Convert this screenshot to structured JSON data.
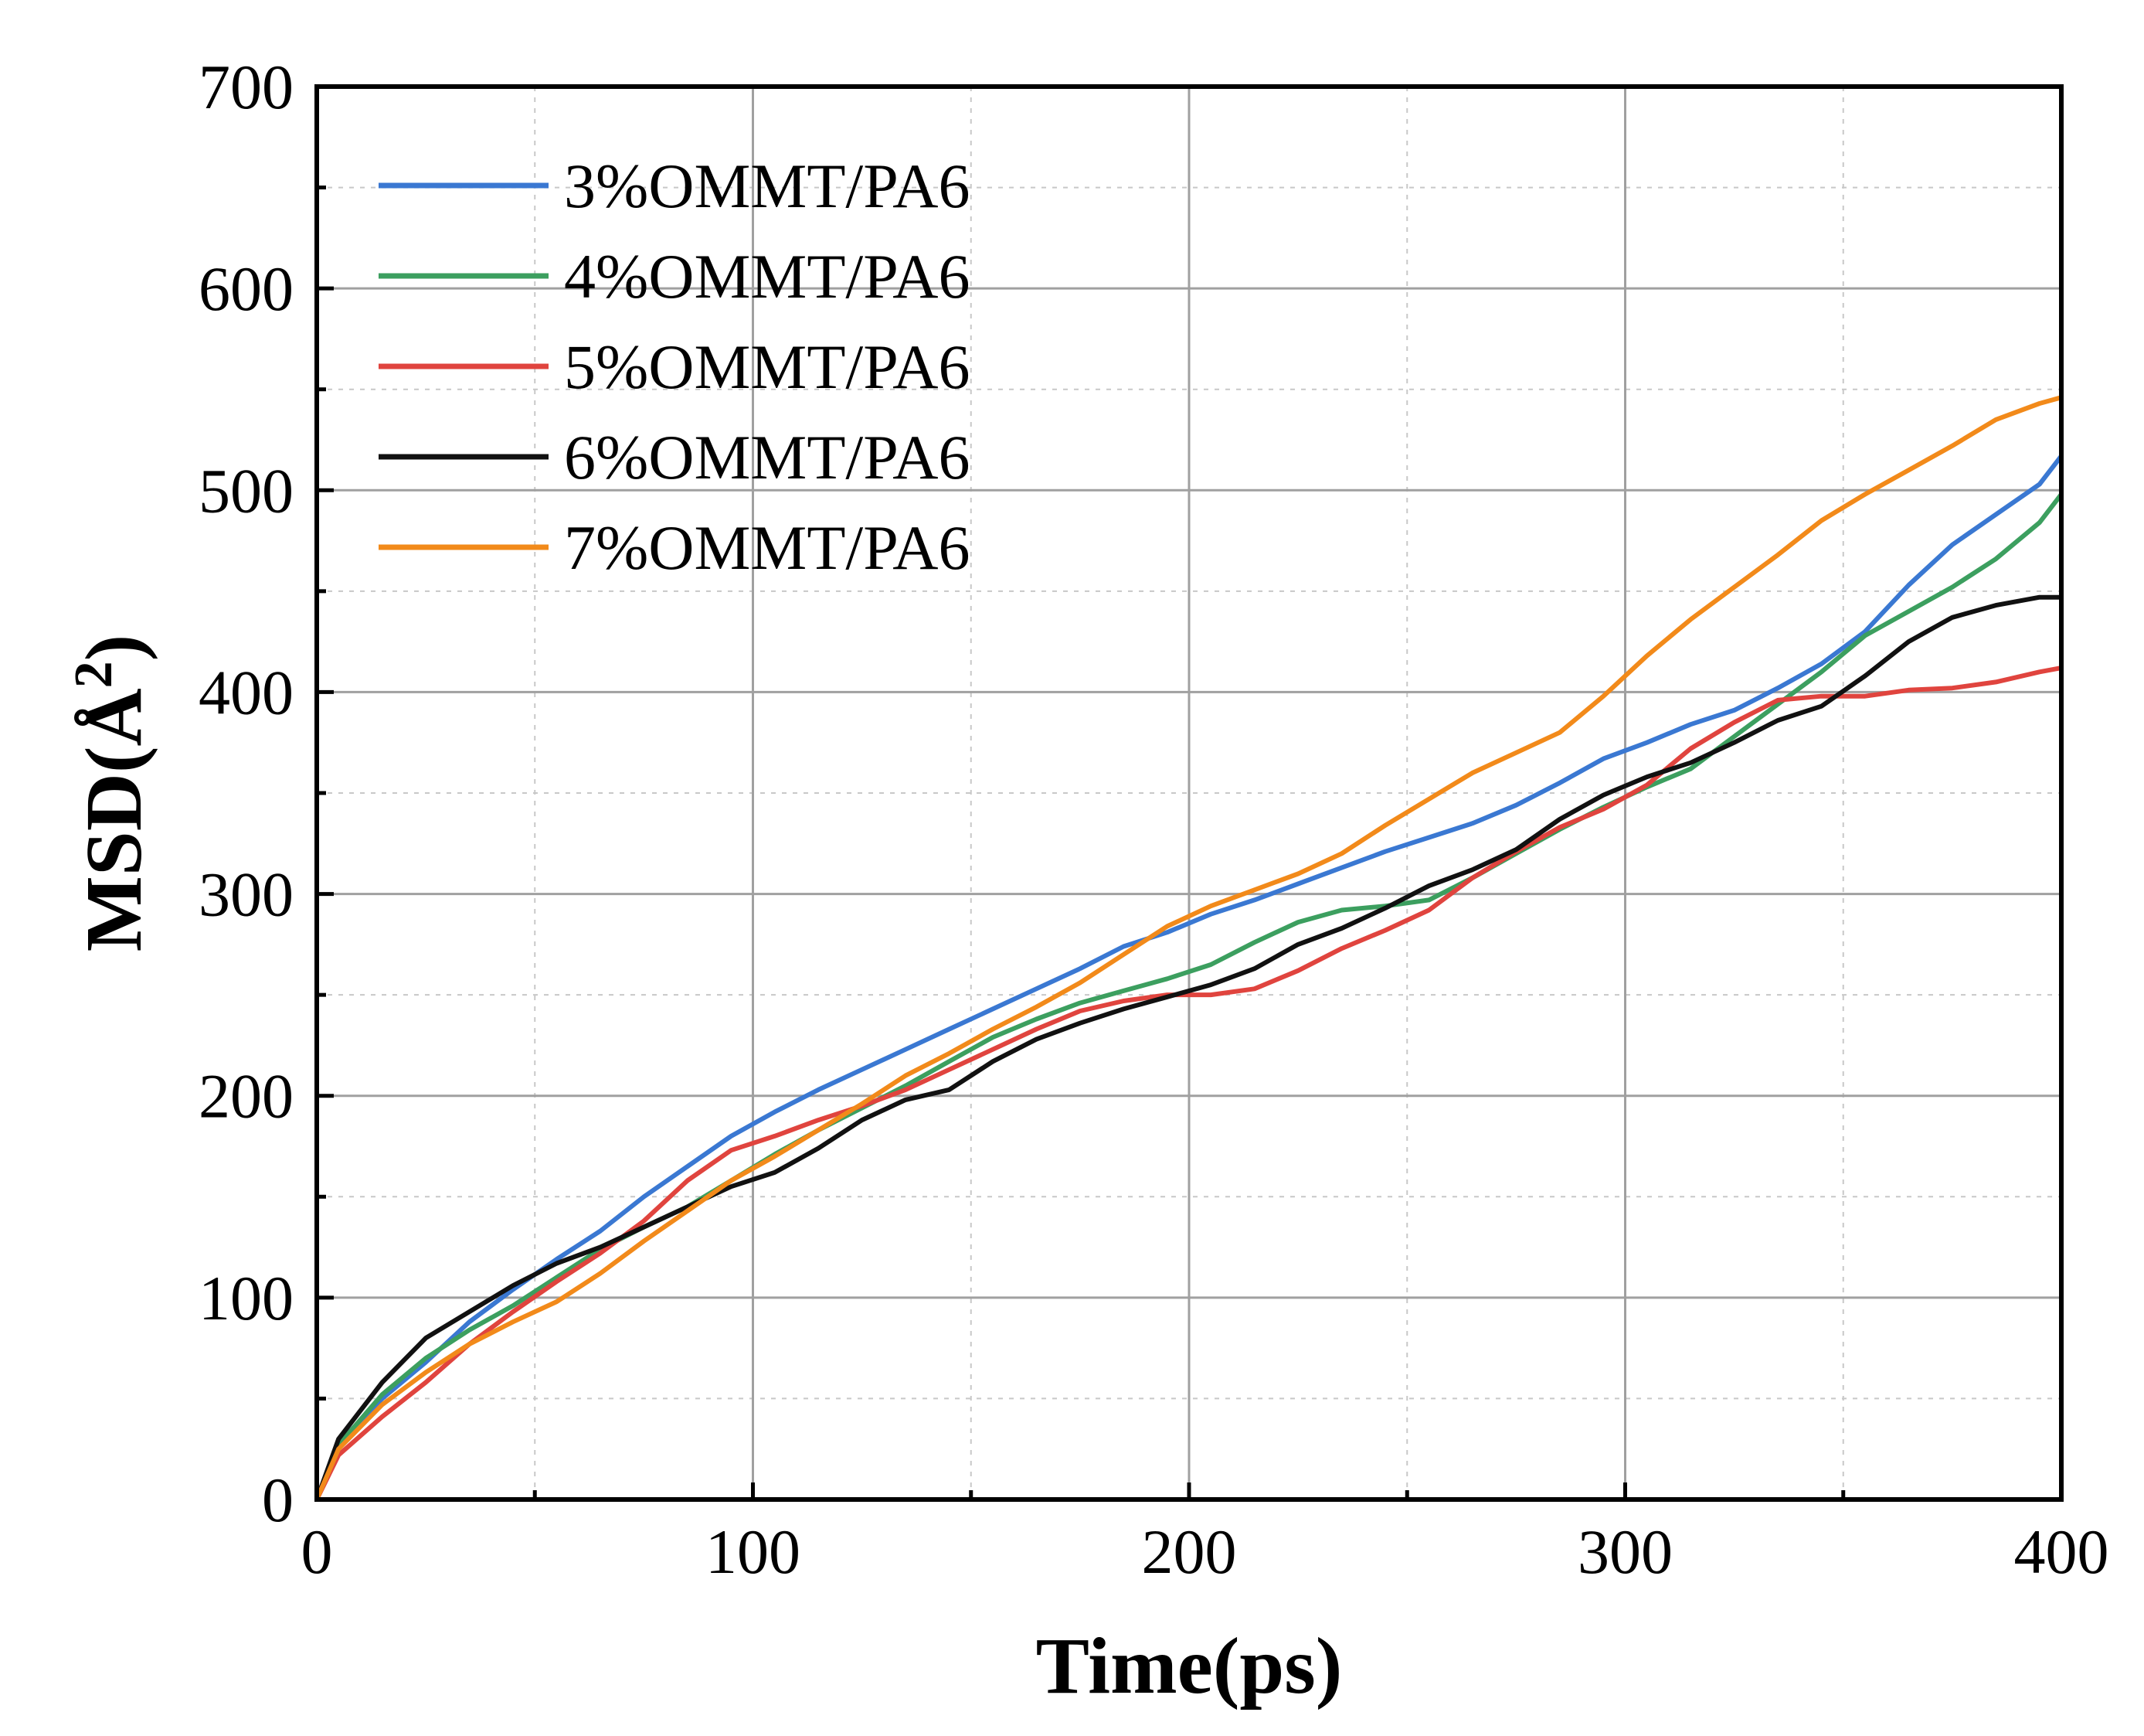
{
  "chart_data": {
    "type": "line",
    "xlabel": "Time(ps)",
    "ylabel_main": "MSD(Å",
    "ylabel_sup": "2",
    "ylabel_close": ")",
    "xlim": [
      0,
      400
    ],
    "ylim": [
      0,
      700
    ],
    "x_ticks": [
      0,
      100,
      200,
      300,
      400
    ],
    "y_ticks": [
      0,
      100,
      200,
      300,
      400,
      500,
      600,
      700
    ],
    "x_minor_step": 50,
    "y_minor_step": 50,
    "grid": true,
    "legend_position": "top-left",
    "series": [
      {
        "name": "3%OMMT/PA6",
        "color": "#3A78D2",
        "points": [
          [
            0,
            0
          ],
          [
            5,
            28
          ],
          [
            15,
            50
          ],
          [
            25,
            68
          ],
          [
            35,
            88
          ],
          [
            45,
            104
          ],
          [
            55,
            119
          ],
          [
            65,
            133
          ],
          [
            75,
            150
          ],
          [
            85,
            165
          ],
          [
            95,
            180
          ],
          [
            105,
            192
          ],
          [
            115,
            203
          ],
          [
            125,
            213
          ],
          [
            135,
            223
          ],
          [
            145,
            233
          ],
          [
            155,
            243
          ],
          [
            165,
            253
          ],
          [
            175,
            263
          ],
          [
            185,
            274
          ],
          [
            195,
            281
          ],
          [
            205,
            290
          ],
          [
            215,
            297
          ],
          [
            225,
            305
          ],
          [
            235,
            313
          ],
          [
            245,
            321
          ],
          [
            255,
            328
          ],
          [
            265,
            335
          ],
          [
            275,
            344
          ],
          [
            285,
            355
          ],
          [
            295,
            367
          ],
          [
            305,
            375
          ],
          [
            315,
            384
          ],
          [
            325,
            391
          ],
          [
            335,
            402
          ],
          [
            345,
            414
          ],
          [
            355,
            430
          ],
          [
            365,
            453
          ],
          [
            375,
            473
          ],
          [
            385,
            488
          ],
          [
            395,
            503
          ],
          [
            400,
            517
          ]
        ]
      },
      {
        "name": "4%OMMT/PA6",
        "color": "#3C9F5F",
        "points": [
          [
            0,
            0
          ],
          [
            5,
            27
          ],
          [
            15,
            52
          ],
          [
            25,
            70
          ],
          [
            35,
            84
          ],
          [
            45,
            96
          ],
          [
            55,
            110
          ],
          [
            65,
            124
          ],
          [
            75,
            135
          ],
          [
            85,
            145
          ],
          [
            95,
            158
          ],
          [
            105,
            171
          ],
          [
            115,
            183
          ],
          [
            125,
            194
          ],
          [
            135,
            205
          ],
          [
            145,
            217
          ],
          [
            155,
            229
          ],
          [
            165,
            238
          ],
          [
            175,
            246
          ],
          [
            185,
            252
          ],
          [
            195,
            258
          ],
          [
            205,
            265
          ],
          [
            215,
            276
          ],
          [
            225,
            286
          ],
          [
            235,
            292
          ],
          [
            245,
            294
          ],
          [
            255,
            297
          ],
          [
            265,
            308
          ],
          [
            275,
            320
          ],
          [
            285,
            332
          ],
          [
            295,
            343
          ],
          [
            305,
            353
          ],
          [
            315,
            362
          ],
          [
            325,
            378
          ],
          [
            335,
            394
          ],
          [
            345,
            410
          ],
          [
            355,
            428
          ],
          [
            365,
            440
          ],
          [
            375,
            452
          ],
          [
            385,
            466
          ],
          [
            395,
            484
          ],
          [
            400,
            498
          ]
        ]
      },
      {
        "name": "5%OMMT/PA6",
        "color": "#E0443E",
        "points": [
          [
            0,
            0
          ],
          [
            5,
            22
          ],
          [
            15,
            41
          ],
          [
            25,
            58
          ],
          [
            35,
            77
          ],
          [
            45,
            93
          ],
          [
            55,
            108
          ],
          [
            65,
            122
          ],
          [
            75,
            138
          ],
          [
            85,
            158
          ],
          [
            95,
            173
          ],
          [
            105,
            180
          ],
          [
            115,
            188
          ],
          [
            125,
            195
          ],
          [
            135,
            203
          ],
          [
            145,
            213
          ],
          [
            155,
            223
          ],
          [
            165,
            233
          ],
          [
            175,
            242
          ],
          [
            185,
            247
          ],
          [
            195,
            250
          ],
          [
            205,
            250
          ],
          [
            215,
            253
          ],
          [
            225,
            262
          ],
          [
            235,
            273
          ],
          [
            245,
            282
          ],
          [
            255,
            292
          ],
          [
            265,
            308
          ],
          [
            275,
            321
          ],
          [
            285,
            333
          ],
          [
            295,
            342
          ],
          [
            305,
            354
          ],
          [
            315,
            372
          ],
          [
            325,
            385
          ],
          [
            335,
            396
          ],
          [
            345,
            398
          ],
          [
            355,
            398
          ],
          [
            365,
            401
          ],
          [
            375,
            402
          ],
          [
            385,
            405
          ],
          [
            395,
            410
          ],
          [
            400,
            412
          ]
        ]
      },
      {
        "name": "6%OMMT/PA6",
        "color": "#111111",
        "points": [
          [
            0,
            0
          ],
          [
            5,
            30
          ],
          [
            15,
            58
          ],
          [
            25,
            80
          ],
          [
            35,
            93
          ],
          [
            45,
            106
          ],
          [
            55,
            117
          ],
          [
            65,
            125
          ],
          [
            75,
            135
          ],
          [
            85,
            145
          ],
          [
            95,
            155
          ],
          [
            105,
            162
          ],
          [
            115,
            174
          ],
          [
            125,
            188
          ],
          [
            135,
            198
          ],
          [
            145,
            203
          ],
          [
            155,
            217
          ],
          [
            165,
            228
          ],
          [
            175,
            236
          ],
          [
            185,
            243
          ],
          [
            195,
            249
          ],
          [
            205,
            255
          ],
          [
            215,
            263
          ],
          [
            225,
            275
          ],
          [
            235,
            283
          ],
          [
            245,
            293
          ],
          [
            255,
            304
          ],
          [
            265,
            312
          ],
          [
            275,
            322
          ],
          [
            285,
            337
          ],
          [
            295,
            349
          ],
          [
            305,
            358
          ],
          [
            315,
            365
          ],
          [
            325,
            375
          ],
          [
            335,
            386
          ],
          [
            345,
            393
          ],
          [
            355,
            408
          ],
          [
            365,
            425
          ],
          [
            375,
            437
          ],
          [
            385,
            443
          ],
          [
            395,
            447
          ],
          [
            400,
            447
          ]
        ]
      },
      {
        "name": "7%OMMT/PA6",
        "color": "#F28A1A",
        "points": [
          [
            0,
            0
          ],
          [
            5,
            25
          ],
          [
            15,
            47
          ],
          [
            25,
            63
          ],
          [
            35,
            77
          ],
          [
            45,
            88
          ],
          [
            55,
            98
          ],
          [
            65,
            112
          ],
          [
            75,
            128
          ],
          [
            85,
            143
          ],
          [
            95,
            158
          ],
          [
            105,
            170
          ],
          [
            115,
            183
          ],
          [
            125,
            196
          ],
          [
            135,
            210
          ],
          [
            145,
            221
          ],
          [
            155,
            233
          ],
          [
            165,
            244
          ],
          [
            175,
            256
          ],
          [
            185,
            270
          ],
          [
            195,
            284
          ],
          [
            205,
            294
          ],
          [
            215,
            302
          ],
          [
            225,
            310
          ],
          [
            235,
            320
          ],
          [
            245,
            334
          ],
          [
            255,
            347
          ],
          [
            265,
            360
          ],
          [
            275,
            370
          ],
          [
            285,
            380
          ],
          [
            295,
            398
          ],
          [
            305,
            418
          ],
          [
            315,
            436
          ],
          [
            325,
            452
          ],
          [
            335,
            468
          ],
          [
            345,
            485
          ],
          [
            355,
            498
          ],
          [
            365,
            510
          ],
          [
            375,
            522
          ],
          [
            385,
            535
          ],
          [
            395,
            543
          ],
          [
            400,
            546
          ]
        ]
      }
    ]
  }
}
